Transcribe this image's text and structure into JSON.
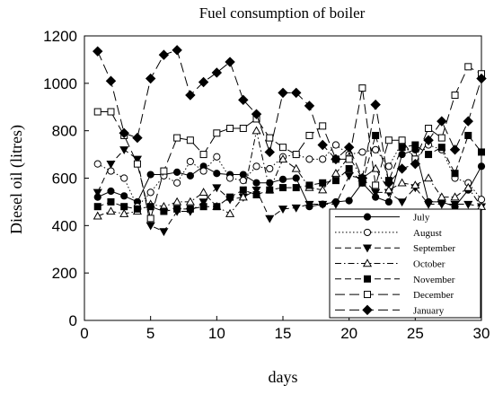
{
  "chart_data": {
    "type": "line",
    "title": "Fuel consumption of boiler",
    "xlabel": "days",
    "ylabel": "Diesel oil (litres)",
    "xlim": [
      0,
      30
    ],
    "ylim": [
      0,
      1200
    ],
    "x_ticks": [
      0,
      5,
      10,
      15,
      20,
      25,
      30
    ],
    "y_ticks": [
      0,
      200,
      400,
      600,
      800,
      1000,
      1200
    ],
    "grid": false,
    "legend_position": "lower-right",
    "x": [
      1,
      2,
      3,
      4,
      5,
      6,
      7,
      8,
      9,
      10,
      11,
      12,
      13,
      14,
      15,
      16,
      17,
      18,
      19,
      20,
      21,
      22,
      23,
      24,
      25,
      26,
      27,
      28,
      29,
      30
    ],
    "series": [
      {
        "name": "July",
        "marker": "filled-circle",
        "line": "solid",
        "values": [
          520,
          545,
          525,
          500,
          615,
          615,
          625,
          610,
          650,
          620,
          615,
          615,
          580,
          580,
          595,
          600,
          480,
          490,
          500,
          505,
          580,
          520,
          500,
          700,
          720,
          500,
          500,
          480,
          550,
          650
        ]
      },
      {
        "name": "August",
        "marker": "open-circle",
        "line": "dotted",
        "values": [
          660,
          630,
          600,
          480,
          540,
          610,
          580,
          670,
          630,
          690,
          600,
          590,
          650,
          640,
          690,
          700,
          680,
          680,
          740,
          700,
          710,
          720,
          650,
          750,
          680,
          740,
          720,
          600,
          580,
          510
        ]
      },
      {
        "name": "September",
        "marker": "filled-triangle-down",
        "line": "dashed",
        "values": [
          540,
          660,
          720,
          680,
          400,
          375,
          460,
          460,
          500,
          560,
          510,
          520,
          550,
          430,
          470,
          475,
          490,
          490,
          490,
          610,
          600,
          540,
          540,
          500,
          560,
          490,
          490,
          490,
          490,
          480
        ]
      },
      {
        "name": "October",
        "marker": "open-triangle-up",
        "line": "dash-dot",
        "values": [
          440,
          460,
          450,
          460,
          490,
          480,
          500,
          500,
          540,
          480,
          450,
          520,
          800,
          550,
          680,
          640,
          560,
          550,
          620,
          690,
          600,
          640,
          550,
          580,
          570,
          600,
          520,
          520,
          560,
          480
        ]
      },
      {
        "name": "November",
        "marker": "filled-square",
        "line": "dashed",
        "values": [
          480,
          500,
          480,
          470,
          480,
          460,
          470,
          470,
          480,
          480,
          520,
          550,
          530,
          550,
          560,
          560,
          570,
          580,
          590,
          640,
          580,
          780,
          590,
          730,
          740,
          700,
          730,
          620,
          780,
          710
        ]
      },
      {
        "name": "December",
        "marker": "open-square",
        "line": "long-dashed",
        "values": [
          880,
          880,
          780,
          660,
          430,
          630,
          770,
          760,
          700,
          790,
          810,
          810,
          850,
          770,
          730,
          700,
          780,
          820,
          680,
          680,
          980,
          570,
          760,
          760,
          680,
          810,
          770,
          950,
          1070,
          1040
        ]
      },
      {
        "name": "January",
        "marker": "filled-diamond",
        "line": "long-dashed",
        "values": [
          1135,
          1010,
          790,
          770,
          1020,
          1120,
          1140,
          950,
          1005,
          1045,
          1090,
          930,
          870,
          710,
          960,
          960,
          905,
          740,
          680,
          730,
          600,
          910,
          580,
          640,
          660,
          760,
          840,
          720,
          840,
          1020
        ]
      }
    ]
  }
}
